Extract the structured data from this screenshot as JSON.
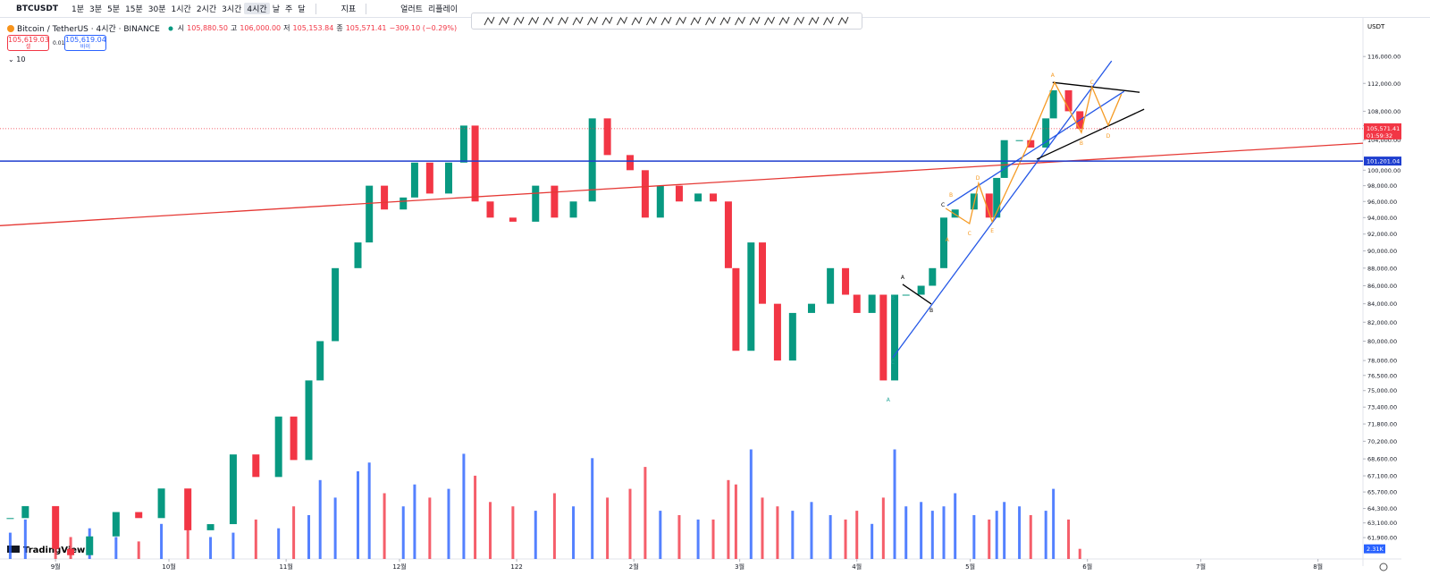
{
  "toolbar": {
    "symbol": "BTCUSDT",
    "intervals": [
      "1분",
      "3분",
      "5분",
      "15분",
      "30분",
      "1시간",
      "2시간",
      "3시간",
      "4시간",
      "날",
      "주",
      "달"
    ],
    "indicators": "지표",
    "alert": "얼러트",
    "replay": "리플레이"
  },
  "legend": {
    "title": "Bitcoin / TetherUS · 4시간 · BINANCE",
    "open_label": "시",
    "open": "105,880.50",
    "high_label": "고",
    "high": "106,000.00",
    "low_label": "저",
    "low": "105,153.84",
    "close_label": "종",
    "close": "105,571.41",
    "change": "−309.10 (−0.29%)",
    "sell_price": "105,619.03",
    "sell": "셀",
    "spread": "0.01",
    "buy_price": "105,619.04",
    "buy": "바이",
    "indicator_count": "10"
  },
  "chart_data": {
    "type": "candlestick",
    "currency": "USDT",
    "log_scale": true,
    "grid": false,
    "colors": {
      "up": "#089981",
      "down": "#f23645",
      "volume_up": "#2962ff",
      "volume_down": "#f23645"
    },
    "xlim": [
      -14.7,
      345.9
    ],
    "ylim": [
      60200,
      122000
    ],
    "xticks": [
      {
        "value": 0,
        "label": "9월"
      },
      {
        "value": 30,
        "label": "10월"
      },
      {
        "value": 61,
        "label": "11월"
      },
      {
        "value": 91,
        "label": "12월"
      },
      122,
      {
        "value": 153,
        "label": "2월"
      },
      {
        "value": 181,
        "label": "3월"
      },
      {
        "value": 212,
        "label": "4월"
      },
      {
        "value": 242,
        "label": "5월"
      },
      {
        "value": 273,
        "label": "6월"
      },
      {
        "value": 303,
        "label": "7월"
      },
      {
        "value": 334,
        "label": "8월"
      }
    ],
    "yticks": [
      {
        "value": 116000,
        "label": "116,000.00"
      },
      {
        "value": 112000,
        "label": "112,000.00"
      },
      {
        "value": 108000,
        "label": "108,000.00"
      },
      {
        "value": 106000,
        "label": "106,000.00"
      },
      {
        "value": 104000,
        "label": "104,000.00"
      },
      {
        "value": 100000,
        "label": "100,000.00"
      },
      {
        "value": 98000,
        "label": "98,000.00"
      },
      {
        "value": 96000,
        "label": "96,000.00"
      },
      {
        "value": 94000,
        "label": "94,000.00"
      },
      {
        "value": 92000,
        "label": "92,000.00"
      },
      {
        "value": 90000,
        "label": "90,000.00"
      },
      {
        "value": 88000,
        "label": "88,000.00"
      },
      {
        "value": 86000,
        "label": "86,000.00"
      },
      {
        "value": 84000,
        "label": "84,000.00"
      },
      {
        "value": 82000,
        "label": "82,000.00"
      },
      {
        "value": 80000,
        "label": "80,000.00"
      },
      {
        "value": 78000,
        "label": "78,000.00"
      },
      {
        "value": 76500,
        "label": "76,500.00"
      },
      {
        "value": 75000,
        "label": "75,000.00"
      },
      {
        "value": 73400,
        "label": "73,400.00"
      },
      {
        "value": 71800,
        "label": "71,800.00"
      },
      {
        "value": 70200,
        "label": "70,200.00"
      },
      {
        "value": 68600,
        "label": "68,600.00"
      },
      {
        "value": 67100,
        "label": "67,100.00"
      },
      {
        "value": 65700,
        "label": "65,700.00"
      },
      {
        "value": 64300,
        "label": "64,300.00"
      },
      {
        "value": 63100,
        "label": "63,100.00"
      },
      {
        "value": 61900,
        "label": "61,900.00"
      }
    ],
    "x": [
      -12,
      -8,
      0,
      4,
      9,
      16,
      22,
      28,
      35,
      41,
      47,
      53,
      59,
      63,
      67,
      70,
      74,
      80,
      83,
      87,
      92,
      95,
      99,
      104,
      108,
      111,
      115,
      121,
      127,
      132,
      137,
      142,
      146,
      152,
      156,
      160,
      165,
      170,
      174,
      178,
      180,
      184,
      187,
      191,
      195,
      200,
      205,
      209,
      212,
      216,
      219,
      222,
      225,
      229,
      232,
      235,
      238,
      243,
      247,
      249,
      251,
      255,
      258,
      262,
      264,
      268,
      271
    ],
    "close": [
      63500,
      64500,
      61000,
      60500,
      62000,
      64000,
      63500,
      66000,
      62500,
      63000,
      69000,
      67000,
      72500,
      68500,
      76000,
      80000,
      88000,
      91000,
      98000,
      95000,
      96500,
      101000,
      97000,
      101000,
      106000,
      96000,
      94000,
      93500,
      98000,
      94000,
      96000,
      107000,
      102000,
      100000,
      94000,
      98000,
      96000,
      97000,
      96000,
      88000,
      79000,
      91000,
      84000,
      78000,
      83000,
      84000,
      88000,
      85000,
      83000,
      85000,
      76000,
      85000,
      85000,
      86000,
      88000,
      94000,
      95000,
      97000,
      94000,
      99000,
      104000,
      104000,
      103000,
      107000,
      111000,
      108000,
      105571.41
    ],
    "volume": {
      "values": [
        6,
        9,
        4,
        5,
        7,
        5,
        4,
        8,
        10,
        5,
        6,
        9,
        7,
        12,
        10,
        18,
        14,
        20,
        22,
        15,
        12,
        17,
        14,
        16,
        24,
        19,
        13,
        12,
        11,
        15,
        12,
        23,
        14,
        16,
        21,
        11,
        10,
        9,
        9,
        18,
        17,
        25,
        14,
        12,
        11,
        13,
        10,
        9,
        11,
        8,
        14,
        25,
        12,
        13,
        11,
        12,
        15,
        10,
        9,
        11,
        13,
        12,
        10,
        11,
        16,
        9,
        2.31
      ],
      "last_label": "2.31K"
    },
    "last_price": {
      "value": 105571.41,
      "label": "105,571.41"
    },
    "countdown": "01:59:32",
    "horizontal_line": {
      "value": 101201.04,
      "label": "101,201.04",
      "color": "#1e3ecf"
    },
    "drawings": [
      {
        "color": "#e53935",
        "points": [
          [
            -14.7,
            93020
          ],
          [
            345.9,
            103590
          ]
        ]
      },
      {
        "color": "#2457e6",
        "points": [
          [
            221.5,
            78300
          ],
          [
            279.4,
            115330
          ]
        ]
      },
      {
        "color": "#2457e6",
        "points": [
          [
            235.9,
            95480
          ],
          [
            282.7,
            110840
          ]
        ]
      },
      {
        "color": "#000000",
        "points": [
          [
            263.8,
            112140
          ],
          [
            286.8,
            110710
          ]
        ]
      },
      {
        "color": "#000000",
        "points": [
          [
            259.6,
            101440
          ],
          [
            288,
            108290
          ]
        ]
      },
      {
        "color": "#000000",
        "points": [
          [
            224.1,
            86160
          ],
          [
            231.7,
            83970
          ]
        ]
      },
      {
        "color": "#f59a23",
        "points": [
          [
            235.5,
            95140
          ],
          [
            241.8,
            93270
          ],
          [
            244.2,
            98300
          ],
          [
            247.8,
            93490
          ],
          [
            257.2,
            103230
          ],
          [
            264.3,
            112140
          ],
          [
            271.4,
            105050
          ],
          [
            274.2,
            111490
          ],
          [
            278.5,
            106040
          ],
          [
            282,
            110450
          ]
        ]
      }
    ],
    "wave_labels": [
      {
        "text": "A",
        "x": 220.3,
        "y": 74120,
        "color": "#26a69a"
      },
      {
        "text": "B",
        "x": 221.5,
        "y": 84660,
        "color": "#26a69a"
      },
      {
        "text": "C",
        "x": 221.5,
        "y": 77840,
        "color": "#26a69a"
      },
      {
        "text": "A",
        "x": 224.1,
        "y": 86960,
        "color": "#000000"
      },
      {
        "text": "B",
        "x": 231.7,
        "y": 83280,
        "color": "#000000"
      },
      {
        "text": "C",
        "x": 234.8,
        "y": 95590,
        "color": "#000000"
      },
      {
        "text": "A",
        "x": 235.9,
        "y": 91340,
        "color": "#f59a23"
      },
      {
        "text": "B",
        "x": 236.9,
        "y": 96820,
        "color": "#f59a23"
      },
      {
        "text": "C",
        "x": 241.8,
        "y": 92090,
        "color": "#f59a23"
      },
      {
        "text": "D",
        "x": 244,
        "y": 98990,
        "color": "#f59a23"
      },
      {
        "text": "E",
        "x": 247.8,
        "y": 92400,
        "color": "#f59a23"
      },
      {
        "text": "A",
        "x": 263.8,
        "y": 113190,
        "color": "#f59a23"
      },
      {
        "text": "B",
        "x": 271.4,
        "y": 103590,
        "color": "#f59a23"
      },
      {
        "text": "C",
        "x": 274.2,
        "y": 112140,
        "color": "#f59a23"
      },
      {
        "text": "D",
        "x": 278.5,
        "y": 104560,
        "color": "#f59a23"
      }
    ],
    "watermark": "TradingView"
  }
}
